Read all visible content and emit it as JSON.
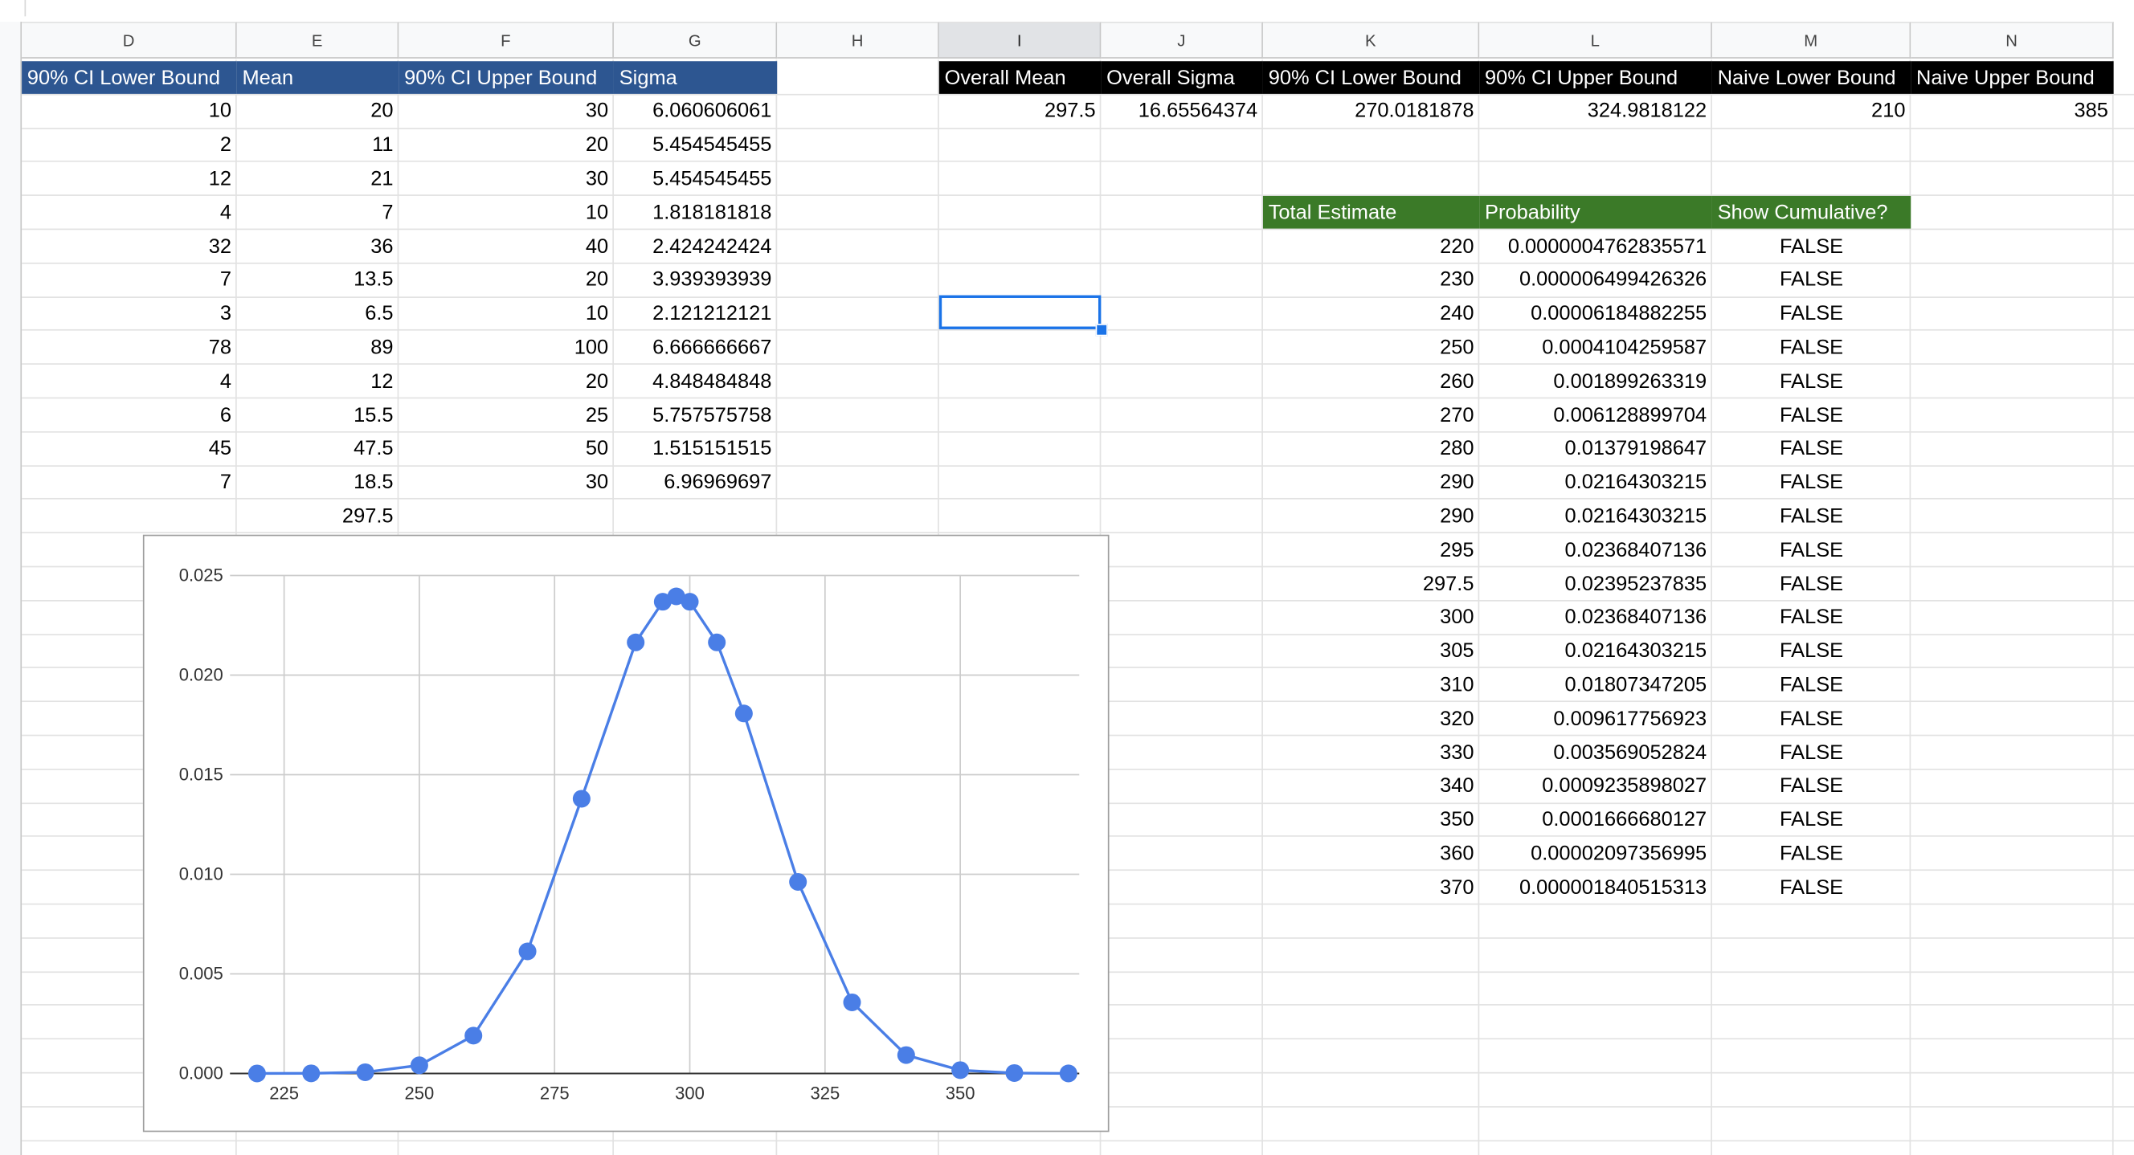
{
  "columns": [
    "D",
    "E",
    "F",
    "G",
    "H",
    "I",
    "J",
    "K",
    "L",
    "M",
    "N"
  ],
  "selected_column": "I",
  "left_table": {
    "headers": [
      "90% CI Lower Bound",
      "Mean",
      "90% CI Upper Bound",
      "Sigma"
    ],
    "rows": [
      [
        "10",
        "20",
        "30",
        "6.060606061"
      ],
      [
        "2",
        "11",
        "20",
        "5.454545455"
      ],
      [
        "12",
        "21",
        "30",
        "5.454545455"
      ],
      [
        "4",
        "7",
        "10",
        "1.818181818"
      ],
      [
        "32",
        "36",
        "40",
        "2.424242424"
      ],
      [
        "7",
        "13.5",
        "20",
        "3.939393939"
      ],
      [
        "3",
        "6.5",
        "10",
        "2.121212121"
      ],
      [
        "78",
        "89",
        "100",
        "6.666666667"
      ],
      [
        "4",
        "12",
        "20",
        "4.848484848"
      ],
      [
        "6",
        "15.5",
        "25",
        "5.757575758"
      ],
      [
        "45",
        "47.5",
        "50",
        "1.515151515"
      ],
      [
        "7",
        "18.5",
        "30",
        "6.96969697"
      ]
    ],
    "mean_total": "297.5"
  },
  "summary": {
    "headers": [
      "Overall Mean",
      "Overall Sigma",
      "90% CI Lower Bound",
      "90% CI Upper Bound",
      "Naive Lower Bound",
      "Naive Upper Bound"
    ],
    "values": [
      "297.5",
      "16.65564374",
      "270.0181878",
      "324.9818122",
      "210",
      "385"
    ]
  },
  "prob_table": {
    "headers": [
      "Total Estimate",
      "Probability",
      "Show Cumulative?"
    ],
    "rows": [
      [
        "220",
        "0.0000004762835571",
        "FALSE"
      ],
      [
        "230",
        "0.000006499426326",
        "FALSE"
      ],
      [
        "240",
        "0.00006184882255",
        "FALSE"
      ],
      [
        "250",
        "0.0004104259587",
        "FALSE"
      ],
      [
        "260",
        "0.001899263319",
        "FALSE"
      ],
      [
        "270",
        "0.006128899704",
        "FALSE"
      ],
      [
        "280",
        "0.01379198647",
        "FALSE"
      ],
      [
        "290",
        "0.02164303215",
        "FALSE"
      ],
      [
        "290",
        "0.02164303215",
        "FALSE"
      ],
      [
        "295",
        "0.02368407136",
        "FALSE"
      ],
      [
        "297.5",
        "0.02395237835",
        "FALSE"
      ],
      [
        "300",
        "0.02368407136",
        "FALSE"
      ],
      [
        "305",
        "0.02164303215",
        "FALSE"
      ],
      [
        "310",
        "0.01807347205",
        "FALSE"
      ],
      [
        "320",
        "0.009617756923",
        "FALSE"
      ],
      [
        "330",
        "0.003569052824",
        "FALSE"
      ],
      [
        "340",
        "0.0009235898027",
        "FALSE"
      ],
      [
        "350",
        "0.0001666680127",
        "FALSE"
      ],
      [
        "360",
        "0.00002097356995",
        "FALSE"
      ],
      [
        "370",
        "0.000001840515313",
        "FALSE"
      ]
    ]
  },
  "colors": {
    "header_blue": "#2d5691",
    "header_black": "#000000",
    "header_green": "#3b7a28",
    "series": "#4a7ee6",
    "selection": "#1a73e8"
  },
  "chart_data": {
    "type": "line",
    "title": "",
    "xlabel": "",
    "ylabel": "",
    "xlim": [
      215,
      372
    ],
    "ylim": [
      0,
      0.025
    ],
    "xticks": [
      "225",
      "250",
      "275",
      "300",
      "325",
      "350"
    ],
    "yticks": [
      "0.000",
      "0.005",
      "0.010",
      "0.015",
      "0.020",
      "0.025"
    ],
    "grid": true,
    "legend": "none",
    "markers": true,
    "series": [
      {
        "x": [
          220,
          230,
          240,
          250,
          260,
          270,
          280,
          290,
          295,
          297.5,
          300,
          305,
          310,
          320,
          330,
          340,
          350,
          360,
          370
        ],
        "y": [
          4.762835571e-07,
          6.499426326e-06,
          6.184882255e-05,
          0.0004104259587,
          0.001899263319,
          0.006128899704,
          0.01379198647,
          0.02164303215,
          0.02368407136,
          0.02395237835,
          0.02368407136,
          0.02164303215,
          0.01807347205,
          0.009617756923,
          0.003569052824,
          0.0009235898027,
          0.0001666680127,
          2.097356995e-05,
          1.840515313e-06
        ]
      }
    ]
  }
}
